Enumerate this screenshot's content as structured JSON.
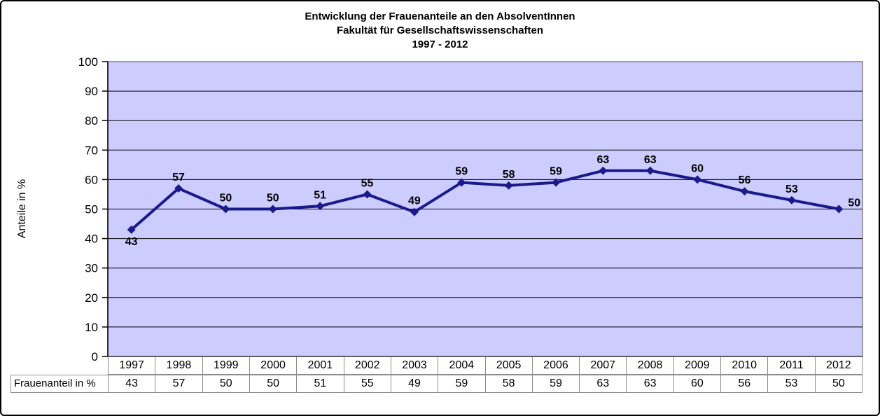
{
  "window": {
    "background": "#FFFFFF",
    "border_color": "#000000"
  },
  "chart_data": {
    "type": "line",
    "title": "Entwicklung der Frauenanteile an den AbsolventInnen Fakultät für Gesellschaftswissenschaften 1997 - 2012",
    "title_lines": [
      "Entwicklung der Frauenanteile an den AbsolventInnen",
      "Fakultät für Gesellschaftswissenschaften",
      "1997 - 2012"
    ],
    "categories": [
      "1997",
      "1998",
      "1999",
      "2000",
      "2001",
      "2002",
      "2003",
      "2004",
      "2005",
      "2006",
      "2007",
      "2008",
      "2009",
      "2010",
      "2011",
      "2012"
    ],
    "series": [
      {
        "name": "Frauenanteil in %",
        "values": [
          43,
          57,
          50,
          50,
          51,
          55,
          49,
          59,
          58,
          59,
          63,
          63,
          60,
          56,
          53,
          50
        ]
      }
    ],
    "xlabel": "",
    "ylabel": "Anteile in %",
    "ylim": [
      0,
      100
    ],
    "ytick_step": 10,
    "yticks": [
      0,
      10,
      20,
      30,
      40,
      50,
      60,
      70,
      80,
      90,
      100
    ],
    "grid": "horizontal-black",
    "legend": "none",
    "data_labels": true,
    "marker": "diamond",
    "colors": {
      "line": "#1A1A8C",
      "plot_bg": "#CCCCFF",
      "plot_border": "#808080",
      "gridline": "#000000",
      "axis": "#000000",
      "label_text": "#000000",
      "table_border": "#8C8C8C"
    }
  },
  "data_table": {
    "row_label": "Frauenanteil in %"
  }
}
